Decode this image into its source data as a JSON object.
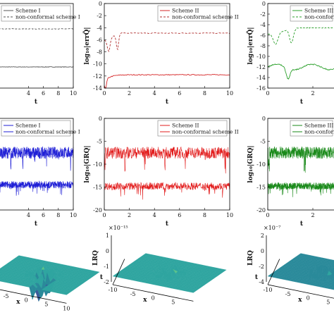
{
  "chart_data": [
    {
      "id": "r1c1",
      "type": "line",
      "xlabel": "t",
      "ylabel": "",
      "xlim": [
        0,
        10
      ],
      "ylim": [
        -16,
        0
      ],
      "xticks": [
        4,
        6,
        8,
        10
      ],
      "yticks": [],
      "legend": {
        "placement": "top-right",
        "entries": [
          "Scheme I",
          "non-conformal scheme I"
        ]
      },
      "series": [
        {
          "name": "Scheme I",
          "color": "#555555",
          "style": "solid",
          "kind": "err",
          "base": -12.0
        },
        {
          "name": "non-conformal scheme I",
          "color": "#555555",
          "style": "dashed",
          "kind": "err",
          "base": -4.8
        }
      ]
    },
    {
      "id": "r1c2",
      "type": "line",
      "xlabel": "t",
      "ylabel": "log10|errQ|",
      "xlim": [
        0,
        10
      ],
      "ylim": [
        -14,
        0
      ],
      "xticks": [
        0,
        2,
        4,
        6,
        8,
        10
      ],
      "yticks": [
        0,
        -2,
        -4,
        -6,
        -8,
        -10,
        -12,
        -14
      ],
      "legend": {
        "placement": "top-right",
        "entries": [
          "Scheme II",
          "non-conformal scheme II"
        ]
      },
      "series": [
        {
          "name": "Scheme II",
          "color": "#d62728",
          "style": "solid",
          "kind": "errlow",
          "base": -11.8
        },
        {
          "name": "non-conformal scheme II",
          "color": "#b03030",
          "style": "dashed",
          "kind": "errhigh",
          "base": -4.9
        }
      ]
    },
    {
      "id": "r1c3",
      "type": "line",
      "xlabel": "t",
      "ylabel": "log10|errQ|",
      "xlim": [
        0,
        3
      ],
      "ylim": [
        -16,
        0
      ],
      "xticks": [
        0,
        2
      ],
      "yticks": [
        0,
        -2,
        -4,
        -6,
        -8,
        -10,
        -12,
        -14,
        -16
      ],
      "legend": {
        "placement": "top-right",
        "entries": [
          "Scheme III",
          "non-conformal scheme III"
        ]
      },
      "series": [
        {
          "name": "Scheme III",
          "color": "#2ca02c",
          "style": "solid",
          "kind": "errlow",
          "base": -12.0
        },
        {
          "name": "non-conformal scheme III",
          "color": "#2ca02c",
          "style": "dashed",
          "kind": "errhigh",
          "base": -4.6
        }
      ]
    },
    {
      "id": "r2c1",
      "type": "line",
      "xlabel": "t",
      "ylabel": "",
      "xlim": [
        0,
        10
      ],
      "ylim": [
        -20,
        0
      ],
      "xticks": [
        4,
        6,
        8,
        10
      ],
      "yticks": [],
      "legend": {
        "placement": "top-right",
        "entries": [
          "Scheme I",
          "non-conformal scheme I"
        ]
      },
      "series": [
        {
          "name": "Scheme I",
          "color": "#1f1fd6",
          "style": "noise",
          "kind": "noisy",
          "base": -7.5
        },
        {
          "name": "non-conformal scheme I",
          "color": "#1f1fd6",
          "style": "noise",
          "kind": "noisylow",
          "base": -14.5
        }
      ]
    },
    {
      "id": "r2c2",
      "type": "line",
      "xlabel": "t",
      "ylabel": "log10|GRQ|",
      "xlim": [
        0,
        10
      ],
      "ylim": [
        -20,
        0
      ],
      "xticks": [
        0,
        2,
        4,
        6,
        8,
        10
      ],
      "yticks": [
        0,
        -5,
        -10,
        -15,
        -20
      ],
      "legend": {
        "placement": "top-right",
        "entries": [
          "Scheme II",
          "non-conformal scheme II"
        ]
      },
      "series": [
        {
          "name": "Scheme II",
          "color": "#e21d1d",
          "style": "noise",
          "kind": "noisy",
          "base": -7.5
        },
        {
          "name": "non-conformal scheme II",
          "color": "#e21d1d",
          "style": "noise",
          "kind": "noisylow",
          "base": -14.8
        }
      ]
    },
    {
      "id": "r2c3",
      "type": "line",
      "xlabel": "t",
      "ylabel": "log10|GRQ|",
      "xlim": [
        0,
        3
      ],
      "ylim": [
        -20,
        0
      ],
      "xticks": [
        0,
        2
      ],
      "yticks": [
        0,
        -5,
        -10,
        -15,
        -20
      ],
      "legend": {
        "placement": "top-right",
        "entries": [
          "Scheme III",
          "non-conformal scheme III"
        ]
      },
      "series": [
        {
          "name": "Scheme III",
          "color": "#1a8a1a",
          "style": "noise",
          "kind": "noisy",
          "base": -7.5
        },
        {
          "name": "non-conformal scheme III",
          "color": "#1a8a1a",
          "style": "noise",
          "kind": "noisylow",
          "base": -14.8
        }
      ]
    },
    {
      "id": "r3c1",
      "type": "surface",
      "xlabel": "x",
      "ylabel": "",
      "tlabel": "",
      "xticks": [
        -10,
        -5,
        0,
        5,
        10
      ],
      "zticks": []
    },
    {
      "id": "r3c2",
      "type": "surface",
      "xlabel": "x",
      "ylabel": "LRQ",
      "tlabel": "t",
      "multiplier": "×10⁻¹⁵",
      "xticks": [
        -10,
        -5,
        0,
        5
      ],
      "zticks": [
        1,
        0,
        -1,
        -2
      ]
    },
    {
      "id": "r3c3",
      "type": "surface",
      "xlabel": "x",
      "ylabel": "LRQ",
      "tlabel": "t",
      "multiplier": "×10⁻⁷",
      "xticks": [
        -10,
        -5,
        0,
        5
      ],
      "zticks": [
        2,
        0,
        -2,
        -4
      ]
    }
  ],
  "labels": {
    "err_ylabel": "log₁₀|errQ̃|",
    "gr_ylabel": "log₁₀|GRQ|",
    "lr_ylabel": "LRQ",
    "t_label": "t",
    "x_label": "x",
    "mult_15": "×10⁻¹⁵",
    "mult_7": "×10⁻⁷"
  }
}
